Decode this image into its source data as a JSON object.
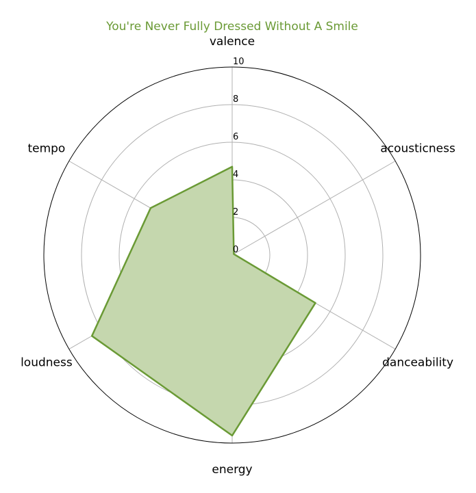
{
  "chart_data": {
    "type": "radar",
    "title": "You're Never Fully Dressed Without A Smile",
    "categories": [
      "valence",
      "acousticness",
      "danceability",
      "energy",
      "loudness",
      "tempo"
    ],
    "series": [
      {
        "values": [
          4.7,
          0.1,
          5.1,
          9.6,
          8.6,
          5.0
        ]
      }
    ],
    "rlim": [
      0,
      10
    ],
    "rticks": [
      "0",
      "2",
      "4",
      "6",
      "8",
      "10"
    ],
    "grid": true,
    "colors": {
      "series": "#6a9a35",
      "fill": "#c5d7ae",
      "title": "#6a9a35",
      "grid": "#b0b0b0",
      "frame": "#000000"
    }
  }
}
